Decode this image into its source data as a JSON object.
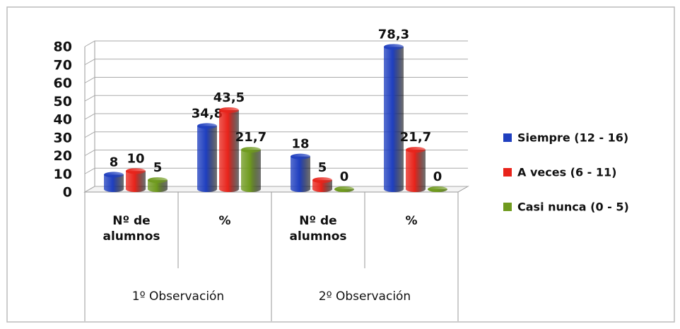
{
  "chart_data": {
    "type": "bar",
    "groups": [
      "1º Observación",
      "2º Observación"
    ],
    "categories": [
      "Nº de alumnos",
      "%",
      "Nº de alumnos",
      "%"
    ],
    "series": [
      {
        "name": "Siempre (12 - 16)",
        "color": "#1f3fbf",
        "values": [
          8,
          34.8,
          18,
          78.3
        ],
        "value_labels": [
          "8",
          "34,8",
          "18",
          "78,3"
        ]
      },
      {
        "name": "A veces (6 - 11)",
        "color": "#e8231a",
        "values": [
          10,
          43.5,
          5,
          21.7
        ],
        "value_labels": [
          "10",
          "43,5",
          "5",
          "21,7"
        ]
      },
      {
        "name": "Casi nunca (0 - 5)",
        "color": "#6f9a1e",
        "values": [
          5,
          21.7,
          0,
          0
        ],
        "value_labels": [
          "5",
          "21,7",
          "0",
          "0"
        ]
      }
    ],
    "ylim": [
      0,
      80
    ],
    "yticks": [
      0,
      10,
      20,
      30,
      40,
      50,
      60,
      70,
      80
    ],
    "grid": true,
    "legend": "right"
  }
}
